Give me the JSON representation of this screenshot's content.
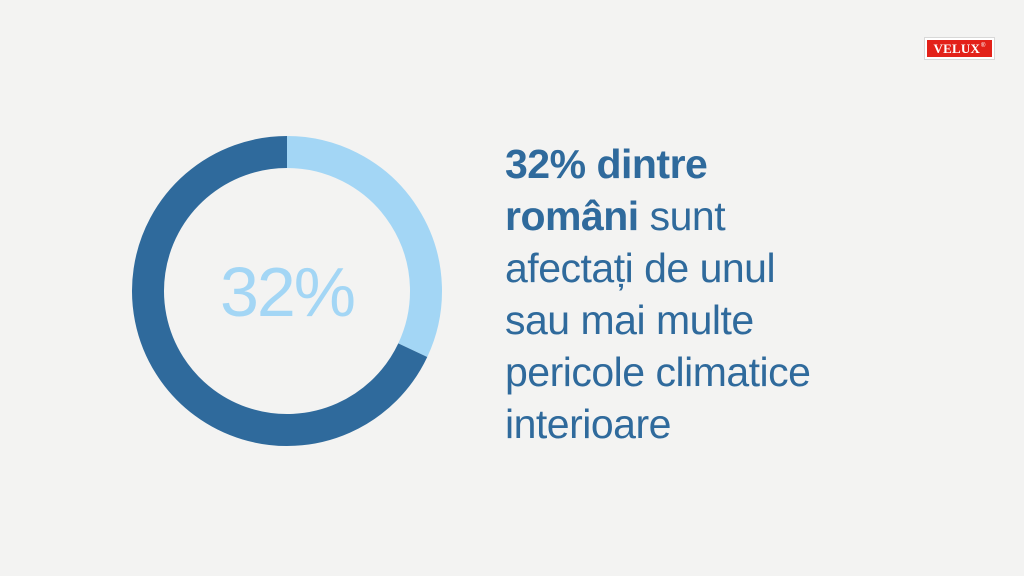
{
  "brand": {
    "logo_text": "VELUX",
    "logo_mark": "®"
  },
  "colors": {
    "background": "#f3f3f2",
    "dark_blue": "#2f6a9c",
    "light_blue": "#a3d6f5",
    "brand_red": "#e32119"
  },
  "chart_data": {
    "type": "pie",
    "style": "donut",
    "center_label": "32%",
    "series": [
      {
        "value": 32,
        "color": "#a3d6f5"
      },
      {
        "value": 68,
        "color": "#2f6a9c"
      }
    ]
  },
  "headline": {
    "bold_1": "32% dintre",
    "bold_2": "români",
    "rest_2": " sunt",
    "line_3": "afectați de unul",
    "line_4": "sau mai multe",
    "line_5": "pericole climatice",
    "line_6": "interioare"
  }
}
